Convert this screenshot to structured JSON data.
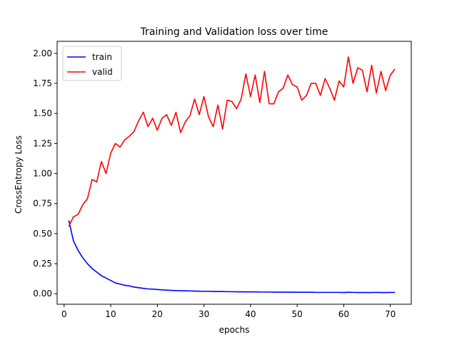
{
  "chart_data": {
    "type": "line",
    "title": "Training and Validation loss over time",
    "xlabel": "epochs",
    "ylabel": "CrossEntropy Loss",
    "xlim": [
      -1.5,
      74.5
    ],
    "ylim": [
      -0.0875,
      2.1
    ],
    "xticks": [
      0,
      10,
      20,
      30,
      40,
      50,
      60,
      70
    ],
    "yticks": [
      0.0,
      0.25,
      0.5,
      0.75,
      1.0,
      1.25,
      1.5,
      1.75,
      2.0
    ],
    "ytick_labels": [
      "0.00",
      "0.25",
      "0.50",
      "0.75",
      "1.00",
      "1.25",
      "1.50",
      "1.75",
      "2.00"
    ],
    "grid": false,
    "legend_position": "top-left",
    "x": [
      1,
      2,
      3,
      4,
      5,
      6,
      7,
      8,
      9,
      10,
      11,
      12,
      13,
      14,
      15,
      16,
      17,
      18,
      19,
      20,
      21,
      22,
      23,
      24,
      25,
      26,
      27,
      28,
      29,
      30,
      31,
      32,
      33,
      34,
      35,
      36,
      37,
      38,
      39,
      40,
      41,
      42,
      43,
      44,
      45,
      46,
      47,
      48,
      49,
      50,
      51,
      52,
      53,
      54,
      55,
      56,
      57,
      58,
      59,
      60,
      61,
      62,
      63,
      64,
      65,
      66,
      67,
      68,
      69,
      70,
      71
    ],
    "series": [
      {
        "name": "train",
        "color": "#0000ff",
        "values": [
          0.61,
          0.44,
          0.36,
          0.3,
          0.25,
          0.21,
          0.18,
          0.15,
          0.13,
          0.11,
          0.09,
          0.08,
          0.07,
          0.065,
          0.055,
          0.05,
          0.045,
          0.04,
          0.038,
          0.035,
          0.032,
          0.03,
          0.028,
          0.026,
          0.025,
          0.024,
          0.023,
          0.022,
          0.021,
          0.02,
          0.02,
          0.019,
          0.018,
          0.018,
          0.017,
          0.017,
          0.016,
          0.016,
          0.015,
          0.015,
          0.015,
          0.014,
          0.014,
          0.014,
          0.013,
          0.013,
          0.013,
          0.013,
          0.012,
          0.012,
          0.012,
          0.012,
          0.012,
          0.011,
          0.011,
          0.011,
          0.011,
          0.011,
          0.011,
          0.01,
          0.012,
          0.011,
          0.01,
          0.01,
          0.01,
          0.01,
          0.011,
          0.01,
          0.01,
          0.011,
          0.01
        ]
      },
      {
        "name": "valid",
        "color": "#ff0000",
        "values": [
          0.56,
          0.64,
          0.66,
          0.74,
          0.79,
          0.95,
          0.93,
          1.1,
          1.0,
          1.17,
          1.25,
          1.22,
          1.28,
          1.31,
          1.35,
          1.44,
          1.51,
          1.39,
          1.46,
          1.36,
          1.46,
          1.49,
          1.4,
          1.51,
          1.34,
          1.43,
          1.48,
          1.62,
          1.49,
          1.64,
          1.47,
          1.39,
          1.57,
          1.37,
          1.61,
          1.6,
          1.54,
          1.62,
          1.83,
          1.64,
          1.82,
          1.59,
          1.85,
          1.58,
          1.58,
          1.68,
          1.71,
          1.82,
          1.74,
          1.72,
          1.61,
          1.65,
          1.75,
          1.75,
          1.65,
          1.79,
          1.71,
          1.61,
          1.77,
          1.72,
          1.97,
          1.75,
          1.88,
          1.86,
          1.68,
          1.9,
          1.67,
          1.85,
          1.69,
          1.82,
          1.87
        ]
      }
    ]
  }
}
